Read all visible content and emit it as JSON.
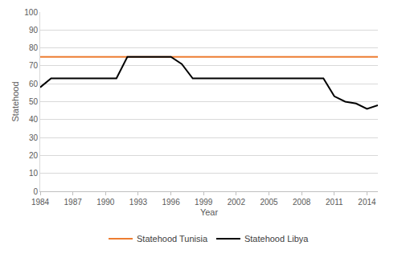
{
  "chart_data": {
    "type": "line",
    "x_label": "Year",
    "y_label": "Statehood",
    "x": [
      1984,
      1985,
      1986,
      1987,
      1988,
      1989,
      1990,
      1991,
      1992,
      1993,
      1994,
      1995,
      1996,
      1997,
      1998,
      1999,
      2000,
      2001,
      2002,
      2003,
      2004,
      2005,
      2006,
      2007,
      2008,
      2009,
      2010,
      2011,
      2012,
      2013,
      2014,
      2015
    ],
    "series": [
      {
        "name": "Statehood Tunisia",
        "color": "#ed7d31",
        "values": [
          75,
          75,
          75,
          75,
          75,
          75,
          75,
          75,
          75,
          75,
          75,
          75,
          75,
          75,
          75,
          75,
          75,
          75,
          75,
          75,
          75,
          75,
          75,
          75,
          75,
          75,
          75,
          75,
          75,
          75,
          75,
          75
        ]
      },
      {
        "name": "Statehood Libya",
        "color": "#000000",
        "values": [
          58,
          63,
          63,
          63,
          63,
          63,
          63,
          63,
          75,
          75,
          75,
          75,
          75,
          71,
          63,
          63,
          63,
          63,
          63,
          63,
          63,
          63,
          63,
          63,
          63,
          63,
          63,
          53,
          50,
          49,
          46,
          48
        ]
      }
    ],
    "xlim": [
      1984,
      2015
    ],
    "xticks": [
      1984,
      1987,
      1990,
      1993,
      1996,
      1999,
      2002,
      2005,
      2008,
      2011,
      2014
    ],
    "ylim": [
      0,
      100
    ],
    "yticks": [
      0,
      10,
      20,
      30,
      40,
      50,
      60,
      70,
      80,
      90,
      100
    ],
    "grid": true,
    "legend": "bottom"
  }
}
